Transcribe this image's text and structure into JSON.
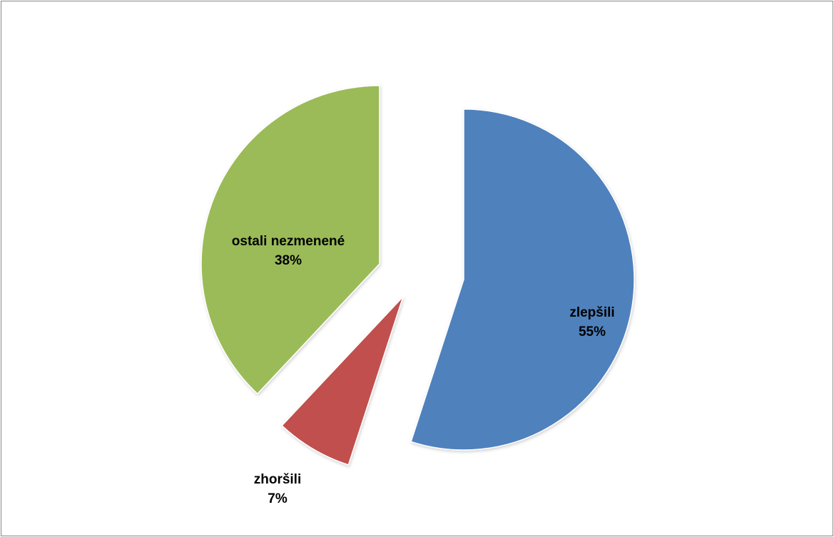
{
  "chart_data": {
    "type": "pie",
    "title": "",
    "slices": [
      {
        "label": "zlepšili",
        "value": 55,
        "value_label": "55%",
        "color": "#4F81BD"
      },
      {
        "label": "zhoršili",
        "value": 7,
        "value_label": "7%",
        "color": "#C0504D"
      },
      {
        "label": "ostali nezmenené",
        "value": 38,
        "value_label": "38%",
        "color": "#9BBB59"
      }
    ],
    "start_angle_deg": 0,
    "direction": "clockwise",
    "exploded": true,
    "legend": "none",
    "data_labels": "category-and-percent"
  }
}
